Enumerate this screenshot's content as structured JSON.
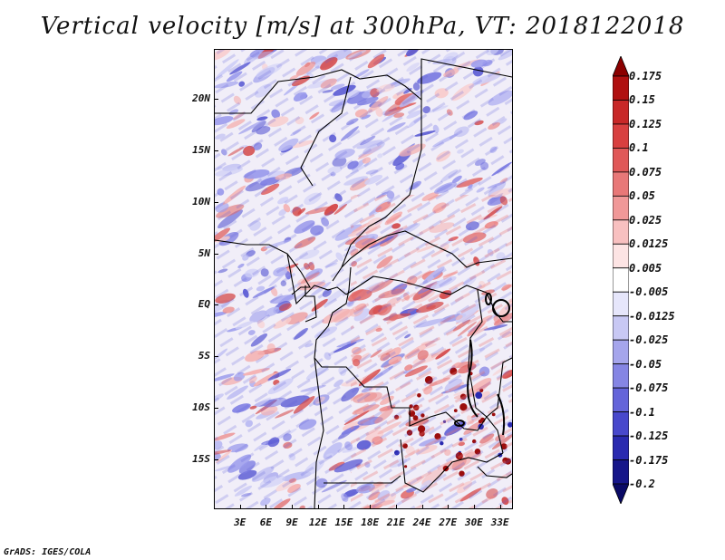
{
  "title": "Vertical velocity [m/s] at 300hPa, VT: 2018122018",
  "credit": "GrADS: IGES/COLA",
  "map": {
    "lat_labels": [
      "20N",
      "15N",
      "10N",
      "5N",
      "EQ",
      "5S",
      "10S",
      "15S"
    ],
    "lat_values": [
      20,
      15,
      10,
      5,
      0,
      -5,
      -10,
      -15
    ],
    "lon_labels": [
      "3E",
      "6E",
      "9E",
      "12E",
      "15E",
      "18E",
      "21E",
      "24E",
      "27E",
      "30E",
      "33E"
    ],
    "lon_values": [
      3,
      6,
      9,
      12,
      15,
      18,
      21,
      24,
      27,
      30,
      33
    ],
    "lon_range": [
      0,
      34.5
    ],
    "lat_range": [
      -19.8,
      24.8
    ]
  },
  "colorbar": {
    "labels": [
      "0.175",
      "0.15",
      "0.125",
      "0.1",
      "0.075",
      "0.05",
      "0.025",
      "0.0125",
      "0.005",
      "-0.005",
      "-0.0125",
      "-0.025",
      "-0.05",
      "-0.075",
      "-0.1",
      "-0.125",
      "-0.175",
      "-0.2"
    ],
    "colors": [
      "#8b0000",
      "#b01010",
      "#c82828",
      "#d84040",
      "#e05858",
      "#e87878",
      "#f09898",
      "#f8c0c0",
      "#fde4e4",
      "#ffffff",
      "#e6e6fb",
      "#c8c8f4",
      "#a5a5ec",
      "#8585e4",
      "#6464da",
      "#4848cc",
      "#2a2ab0",
      "#16168a",
      "#0a0a66"
    ]
  },
  "palette": {
    "neutral": "#f3f1f8",
    "low": "#8c8ce8",
    "high": "#ec8e8e"
  }
}
